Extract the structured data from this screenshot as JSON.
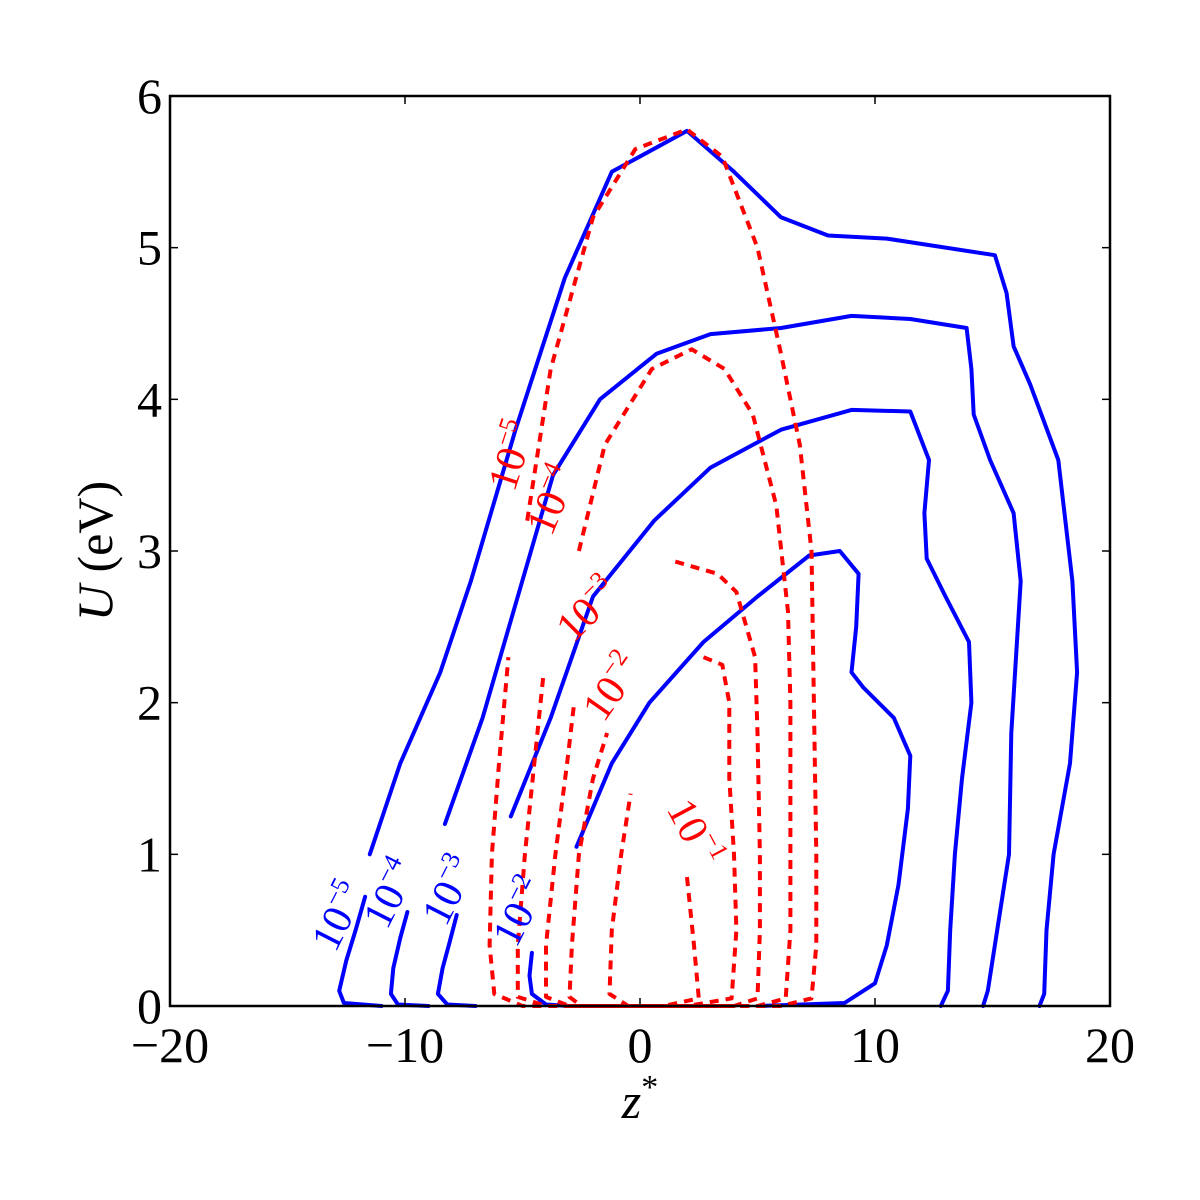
{
  "chart_data": {
    "type": "contour",
    "xlabel": {
      "main": "z",
      "sup": "*"
    },
    "ylabel": {
      "italic": "U",
      "rest": " (eV)"
    },
    "xlim": [
      -20,
      20
    ],
    "ylim": [
      0,
      6
    ],
    "xticks": [
      {
        "value": -20,
        "label": "−20"
      },
      {
        "value": -10,
        "label": "−10"
      },
      {
        "value": 0,
        "label": "0"
      },
      {
        "value": 10,
        "label": "10"
      },
      {
        "value": 20,
        "label": "20"
      }
    ],
    "yticks": [
      {
        "value": 0,
        "label": "0"
      },
      {
        "value": 1,
        "label": "1"
      },
      {
        "value": 2,
        "label": "2"
      },
      {
        "value": 3,
        "label": "3"
      },
      {
        "value": 4,
        "label": "4"
      },
      {
        "value": 5,
        "label": "5"
      },
      {
        "value": 6,
        "label": "6"
      }
    ],
    "series": [
      {
        "color": "#0000ff",
        "style": "solid",
        "contours": [
          {
            "level": "-5",
            "points": [
              [
                -11.5,
                1.0
              ],
              [
                -10.2,
                1.6
              ],
              [
                -8.5,
                2.2
              ],
              [
                -7.2,
                2.8
              ],
              [
                -5.3,
                3.8
              ],
              [
                -3.2,
                4.8
              ],
              [
                -1.2,
                5.5
              ],
              [
                2.0,
                5.77
              ],
              [
                4.0,
                5.5
              ],
              [
                6.0,
                5.2
              ],
              [
                8.0,
                5.08
              ],
              [
                10.5,
                5.06
              ],
              [
                15.1,
                4.95
              ],
              [
                15.6,
                4.7
              ],
              [
                15.9,
                4.35
              ],
              [
                16.6,
                4.1
              ],
              [
                17.8,
                3.6
              ],
              [
                18.4,
                2.8
              ],
              [
                18.6,
                2.2
              ],
              [
                18.3,
                1.6
              ],
              [
                17.6,
                1.0
              ],
              [
                17.3,
                0.5
              ],
              [
                17.2,
                0.08
              ],
              [
                17.0,
                0.0
              ]
            ]
          },
          {
            "level": "-4",
            "points": [
              [
                -8.3,
                1.2
              ],
              [
                -6.7,
                1.9
              ],
              [
                -5.2,
                2.7
              ],
              [
                -3.7,
                3.5
              ],
              [
                -1.7,
                4.0
              ],
              [
                0.7,
                4.3
              ],
              [
                3.0,
                4.43
              ],
              [
                6.0,
                4.47
              ],
              [
                9.0,
                4.55
              ],
              [
                11.5,
                4.53
              ],
              [
                13.9,
                4.47
              ],
              [
                14.1,
                4.2
              ],
              [
                14.2,
                3.9
              ],
              [
                14.9,
                3.6
              ],
              [
                15.9,
                3.25
              ],
              [
                16.2,
                2.8
              ],
              [
                16.0,
                2.3
              ],
              [
                15.8,
                1.8
              ],
              [
                15.7,
                1.0
              ],
              [
                15.2,
                0.5
              ],
              [
                14.8,
                0.1
              ],
              [
                14.6,
                0.0
              ]
            ]
          },
          {
            "level": "-3",
            "points": [
              [
                -5.5,
                1.25
              ],
              [
                -3.8,
                1.9
              ],
              [
                -2.0,
                2.7
              ],
              [
                0.6,
                3.2
              ],
              [
                3.0,
                3.55
              ],
              [
                6.0,
                3.8
              ],
              [
                9.0,
                3.93
              ],
              [
                11.5,
                3.92
              ],
              [
                12.3,
                3.6
              ],
              [
                12.1,
                3.25
              ],
              [
                12.2,
                2.95
              ],
              [
                13.0,
                2.7
              ],
              [
                14.0,
                2.4
              ],
              [
                14.1,
                2.0
              ],
              [
                13.7,
                1.5
              ],
              [
                13.4,
                1.0
              ],
              [
                13.2,
                0.5
              ],
              [
                13.1,
                0.1
              ],
              [
                12.8,
                0.0
              ]
            ]
          },
          {
            "level": "-2",
            "points": [
              [
                -2.7,
                1.05
              ],
              [
                -1.2,
                1.6
              ],
              [
                0.4,
                2.0
              ],
              [
                2.7,
                2.4
              ],
              [
                5.0,
                2.7
              ],
              [
                7.2,
                2.97
              ],
              [
                8.5,
                3.0
              ],
              [
                9.3,
                2.85
              ],
              [
                9.2,
                2.5
              ],
              [
                9.0,
                2.2
              ],
              [
                9.5,
                2.1
              ],
              [
                10.8,
                1.9
              ],
              [
                11.5,
                1.65
              ],
              [
                11.4,
                1.3
              ],
              [
                11.0,
                0.8
              ],
              [
                10.5,
                0.4
              ],
              [
                10.0,
                0.15
              ],
              [
                8.7,
                0.02
              ],
              [
                5.0,
                0.0
              ]
            ]
          },
          {
            "level": "-5",
            "points": [
              [
                -11.7,
                0.72
              ],
              [
                -12.1,
                0.5
              ],
              [
                -12.5,
                0.3
              ],
              [
                -12.8,
                0.1
              ],
              [
                -12.6,
                0.02
              ],
              [
                -11.0,
                0.0
              ]
            ]
          },
          {
            "level": "-4",
            "points": [
              [
                -9.9,
                0.62
              ],
              [
                -10.2,
                0.45
              ],
              [
                -10.5,
                0.25
              ],
              [
                -10.6,
                0.08
              ],
              [
                -10.3,
                0.01
              ],
              [
                -9.0,
                0.0
              ]
            ]
          },
          {
            "level": "-3",
            "points": [
              [
                -7.8,
                0.6
              ],
              [
                -8.1,
                0.42
              ],
              [
                -8.4,
                0.25
              ],
              [
                -8.6,
                0.08
              ],
              [
                -8.2,
                0.01
              ],
              [
                -7.0,
                0.0
              ]
            ]
          },
          {
            "level": "-2",
            "points": [
              [
                -4.6,
                0.35
              ],
              [
                -4.7,
                0.2
              ],
              [
                -4.6,
                0.08
              ],
              [
                -4.0,
                0.01
              ],
              [
                -3.0,
                0.0
              ]
            ]
          }
        ]
      },
      {
        "color": "#ff0000",
        "style": "dashed",
        "contours": [
          {
            "level": "-5",
            "points": [
              [
                -4.8,
                3.2
              ],
              [
                -3.8,
                4.2
              ],
              [
                -2.0,
                5.2
              ],
              [
                -0.2,
                5.65
              ],
              [
                2.0,
                5.78
              ],
              [
                3.5,
                5.6
              ],
              [
                5.0,
                5.0
              ],
              [
                6.0,
                4.3
              ],
              [
                6.8,
                3.7
              ],
              [
                7.3,
                3.0
              ],
              [
                7.4,
                2.0
              ],
              [
                7.5,
                1.0
              ],
              [
                7.5,
                0.4
              ],
              [
                7.3,
                0.05
              ],
              [
                6.0,
                0.0
              ],
              [
                -5.0,
                0.0
              ],
              [
                -6.2,
                0.08
              ],
              [
                -6.4,
                0.4
              ],
              [
                -6.3,
                1.0
              ],
              [
                -6.0,
                1.6
              ],
              [
                -5.6,
                2.3
              ]
            ]
          },
          {
            "level": "-4",
            "points": [
              [
                -2.6,
                3.0
              ],
              [
                -1.5,
                3.7
              ],
              [
                0.5,
                4.2
              ],
              [
                2.2,
                4.33
              ],
              [
                3.6,
                4.2
              ],
              [
                4.8,
                3.9
              ],
              [
                5.8,
                3.3
              ],
              [
                6.3,
                2.6
              ],
              [
                6.4,
                2.0
              ],
              [
                6.4,
                1.2
              ],
              [
                6.4,
                0.5
              ],
              [
                6.2,
                0.05
              ],
              [
                5.0,
                0.0
              ],
              [
                -4.0,
                0.0
              ],
              [
                -5.2,
                0.06
              ],
              [
                -5.2,
                0.4
              ],
              [
                -4.9,
                1.0
              ],
              [
                -4.5,
                1.6
              ],
              [
                -4.1,
                2.2
              ]
            ]
          },
          {
            "level": "-3",
            "points": [
              [
                1.5,
                2.93
              ],
              [
                3.3,
                2.85
              ],
              [
                4.1,
                2.73
              ],
              [
                4.9,
                2.3
              ],
              [
                5.0,
                1.8
              ],
              [
                5.1,
                1.0
              ],
              [
                5.1,
                0.5
              ],
              [
                5.0,
                0.05
              ],
              [
                4.0,
                0.0
              ],
              [
                -3.0,
                0.0
              ],
              [
                -4.0,
                0.06
              ],
              [
                -4.0,
                0.4
              ],
              [
                -3.6,
                1.0
              ],
              [
                -3.1,
                1.6
              ],
              [
                -2.8,
                2.0
              ]
            ]
          },
          {
            "level": "-2",
            "points": [
              [
                2.7,
                2.3
              ],
              [
                3.5,
                2.25
              ],
              [
                3.8,
                2.0
              ],
              [
                3.8,
                1.5
              ],
              [
                4.0,
                1.0
              ],
              [
                4.1,
                0.5
              ],
              [
                3.9,
                0.05
              ],
              [
                2.0,
                0.0
              ],
              [
                -2.5,
                0.0
              ],
              [
                -3.0,
                0.06
              ],
              [
                -2.9,
                0.4
              ],
              [
                -2.6,
                1.0
              ],
              [
                -2.0,
                1.5
              ],
              [
                -1.4,
                1.8
              ]
            ]
          },
          {
            "level": "-1",
            "points": [
              [
                2.0,
                0.85
              ],
              [
                2.3,
                0.4
              ],
              [
                2.5,
                0.05
              ],
              [
                1.0,
                0.0
              ],
              [
                -0.5,
                0.0
              ],
              [
                -1.3,
                0.08
              ],
              [
                -1.2,
                0.5
              ],
              [
                -0.8,
                1.0
              ],
              [
                -0.4,
                1.4
              ]
            ]
          }
        ]
      }
    ],
    "contour_labels": [
      {
        "color": "#0000ff",
        "base": "10",
        "exp": "−5",
        "x": -12.3,
        "y": 0.55,
        "angle": -63
      },
      {
        "color": "#0000ff",
        "base": "10",
        "exp": "−4",
        "x": -10.1,
        "y": 0.7,
        "angle": -63
      },
      {
        "color": "#0000ff",
        "base": "10",
        "exp": "−3",
        "x": -7.6,
        "y": 0.72,
        "angle": -63
      },
      {
        "color": "#0000ff",
        "base": "10",
        "exp": "−2",
        "x": -4.6,
        "y": 0.58,
        "angle": -63
      },
      {
        "color": "#ff0000",
        "base": "10",
        "exp": "−5",
        "x": -4.9,
        "y": 3.6,
        "angle": -72
      },
      {
        "color": "#ff0000",
        "base": "10",
        "exp": "−4",
        "x": -3.2,
        "y": 3.3,
        "angle": -67
      },
      {
        "color": "#ff0000",
        "base": "10",
        "exp": "−3",
        "x": -1.8,
        "y": 2.55,
        "angle": -45
      },
      {
        "color": "#ff0000",
        "base": "10",
        "exp": "−2",
        "x": -0.7,
        "y": 2.05,
        "angle": -55
      },
      {
        "color": "#ff0000",
        "base": "10",
        "exp": "−1",
        "x": 1.8,
        "y": 1.1,
        "angle": 62
      }
    ]
  }
}
